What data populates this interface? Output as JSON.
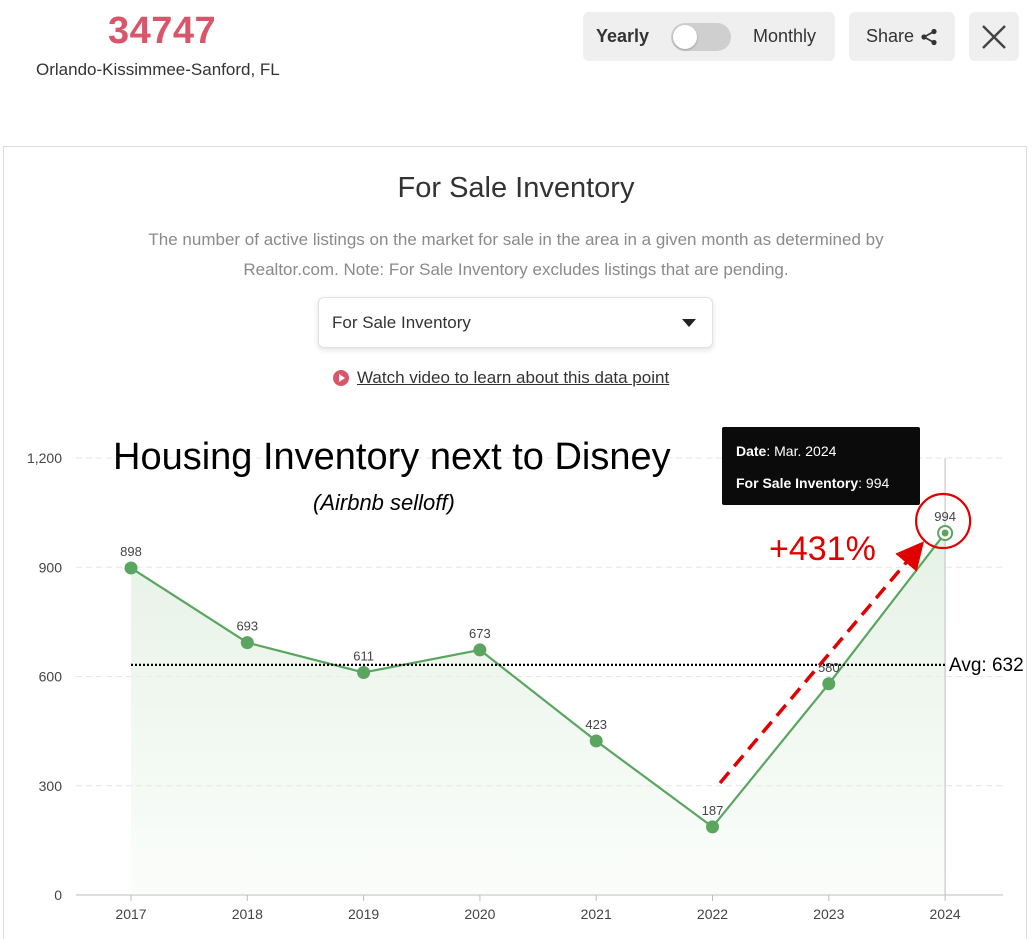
{
  "header": {
    "zip": "34747",
    "metro": "Orlando-Kissimmee-Sanford, FL",
    "toggle_yearly": "Yearly",
    "toggle_monthly": "Monthly",
    "share_label": "Share"
  },
  "panel": {
    "title": "For Sale Inventory",
    "description": "The number of active listings on the market for sale in the area in a given month as determined by Realtor.com. Note: For Sale Inventory excludes listings that are pending.",
    "dropdown_value": "For Sale Inventory",
    "video_link": "Watch video to learn about this data point"
  },
  "annotations": {
    "headline": "Housing Inventory next to Disney",
    "subheadline": "(Airbnb selloff)",
    "growth": "+431%",
    "avg_label": "Avg: 632"
  },
  "tooltip": {
    "date_key": "Date",
    "date_value": ": Mar. 2024",
    "metric_key": "For Sale Inventory",
    "metric_value": ": 994"
  },
  "colors": {
    "accent": "#d9566a",
    "line": "#5aa55f",
    "area": "#e6f2e6",
    "arrow": "#e00000"
  },
  "chart_data": {
    "type": "line",
    "categories": [
      "2017",
      "2018",
      "2019",
      "2020",
      "2021",
      "2022",
      "2023",
      "2024"
    ],
    "values": [
      898,
      693,
      611,
      673,
      423,
      187,
      580,
      994
    ],
    "data_labels": [
      "898",
      "693",
      "611",
      "673",
      "423",
      "187",
      "580",
      "994"
    ],
    "ylim": [
      0,
      1200
    ],
    "yticks": [
      0,
      300,
      600,
      900,
      1200
    ],
    "ytick_labels": [
      "0",
      "300",
      "600",
      "900",
      "1,200"
    ],
    "average": 632,
    "grid": true,
    "highlight_index": 7
  }
}
